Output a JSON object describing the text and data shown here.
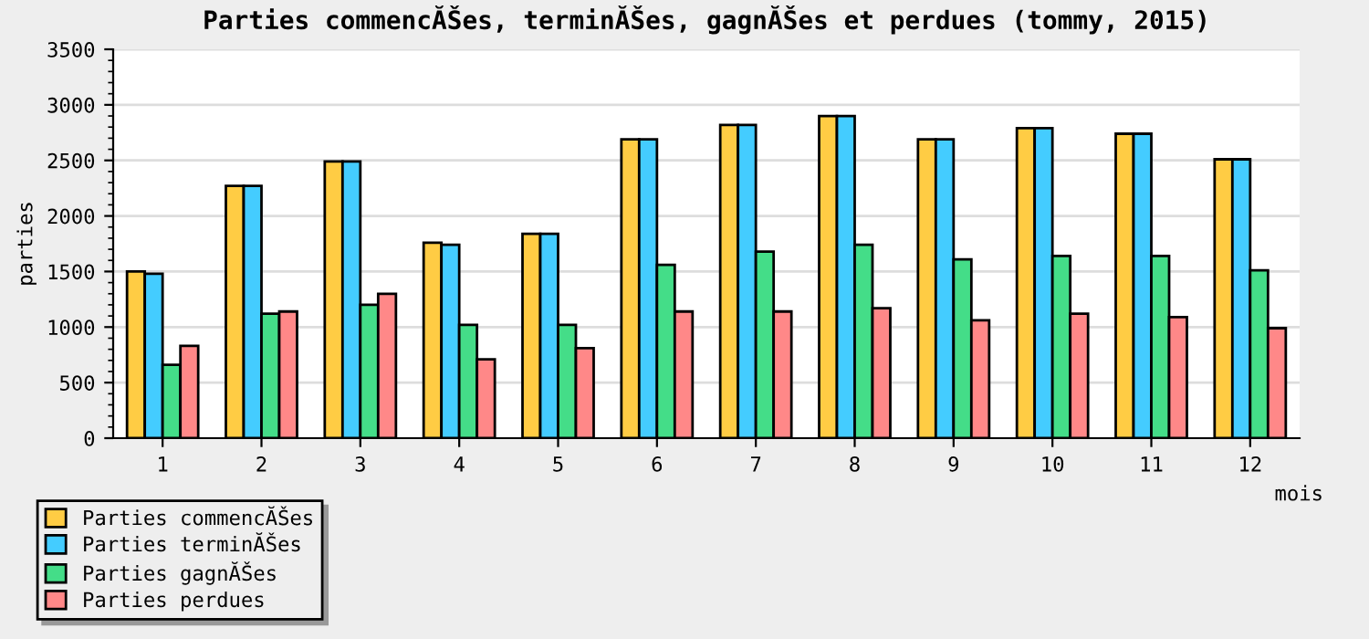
{
  "chart_data": {
    "type": "bar",
    "title": "Parties commencĂŠes, terminĂŠes, gagnĂŠes et perdues (tommy, 2015)",
    "xlabel": "mois",
    "ylabel": "parties",
    "categories": [
      "1",
      "2",
      "3",
      "4",
      "5",
      "6",
      "7",
      "8",
      "9",
      "10",
      "11",
      "12"
    ],
    "series": [
      {
        "name": "Parties commencĂŠes",
        "color": "#ffcc44",
        "values": [
          1500,
          2270,
          2490,
          1760,
          1840,
          2690,
          2820,
          2900,
          2690,
          2790,
          2740,
          2510
        ]
      },
      {
        "name": "Parties terminĂŠes",
        "color": "#44ccff",
        "values": [
          1480,
          2270,
          2490,
          1740,
          1840,
          2690,
          2820,
          2900,
          2690,
          2790,
          2740,
          2510
        ]
      },
      {
        "name": "Parties gagnĂŠes",
        "color": "#44dd88",
        "values": [
          660,
          1120,
          1200,
          1020,
          1020,
          1560,
          1680,
          1740,
          1610,
          1640,
          1640,
          1510
        ]
      },
      {
        "name": "Parties perdues",
        "color": "#ff8888",
        "values": [
          830,
          1140,
          1300,
          710,
          810,
          1140,
          1140,
          1170,
          1060,
          1120,
          1090,
          990
        ]
      }
    ],
    "ylim": [
      0,
      3500
    ],
    "yticks": [
      0,
      500,
      1000,
      1500,
      2000,
      2500,
      3000,
      3500
    ],
    "grid": "y",
    "legend": "bottom left"
  }
}
